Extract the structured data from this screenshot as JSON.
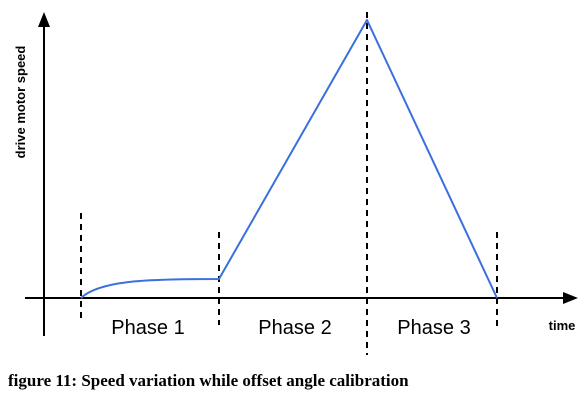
{
  "diagram": {
    "y_axis_label": "drive motor speed",
    "x_axis_label": "time",
    "phases": [
      {
        "label": "Phase 1"
      },
      {
        "label": "Phase 2"
      },
      {
        "label": "Phase 3"
      }
    ],
    "curve_color": "#3a6fe0",
    "segments": [
      {
        "phase": "Phase 1",
        "shape": "saturating rise to low constant speed"
      },
      {
        "phase": "Phase 2",
        "shape": "linear ramp up to peak"
      },
      {
        "phase": "Phase 3",
        "shape": "linear ramp down to zero"
      }
    ]
  },
  "caption": "figure 11: Speed variation while offset angle calibration"
}
